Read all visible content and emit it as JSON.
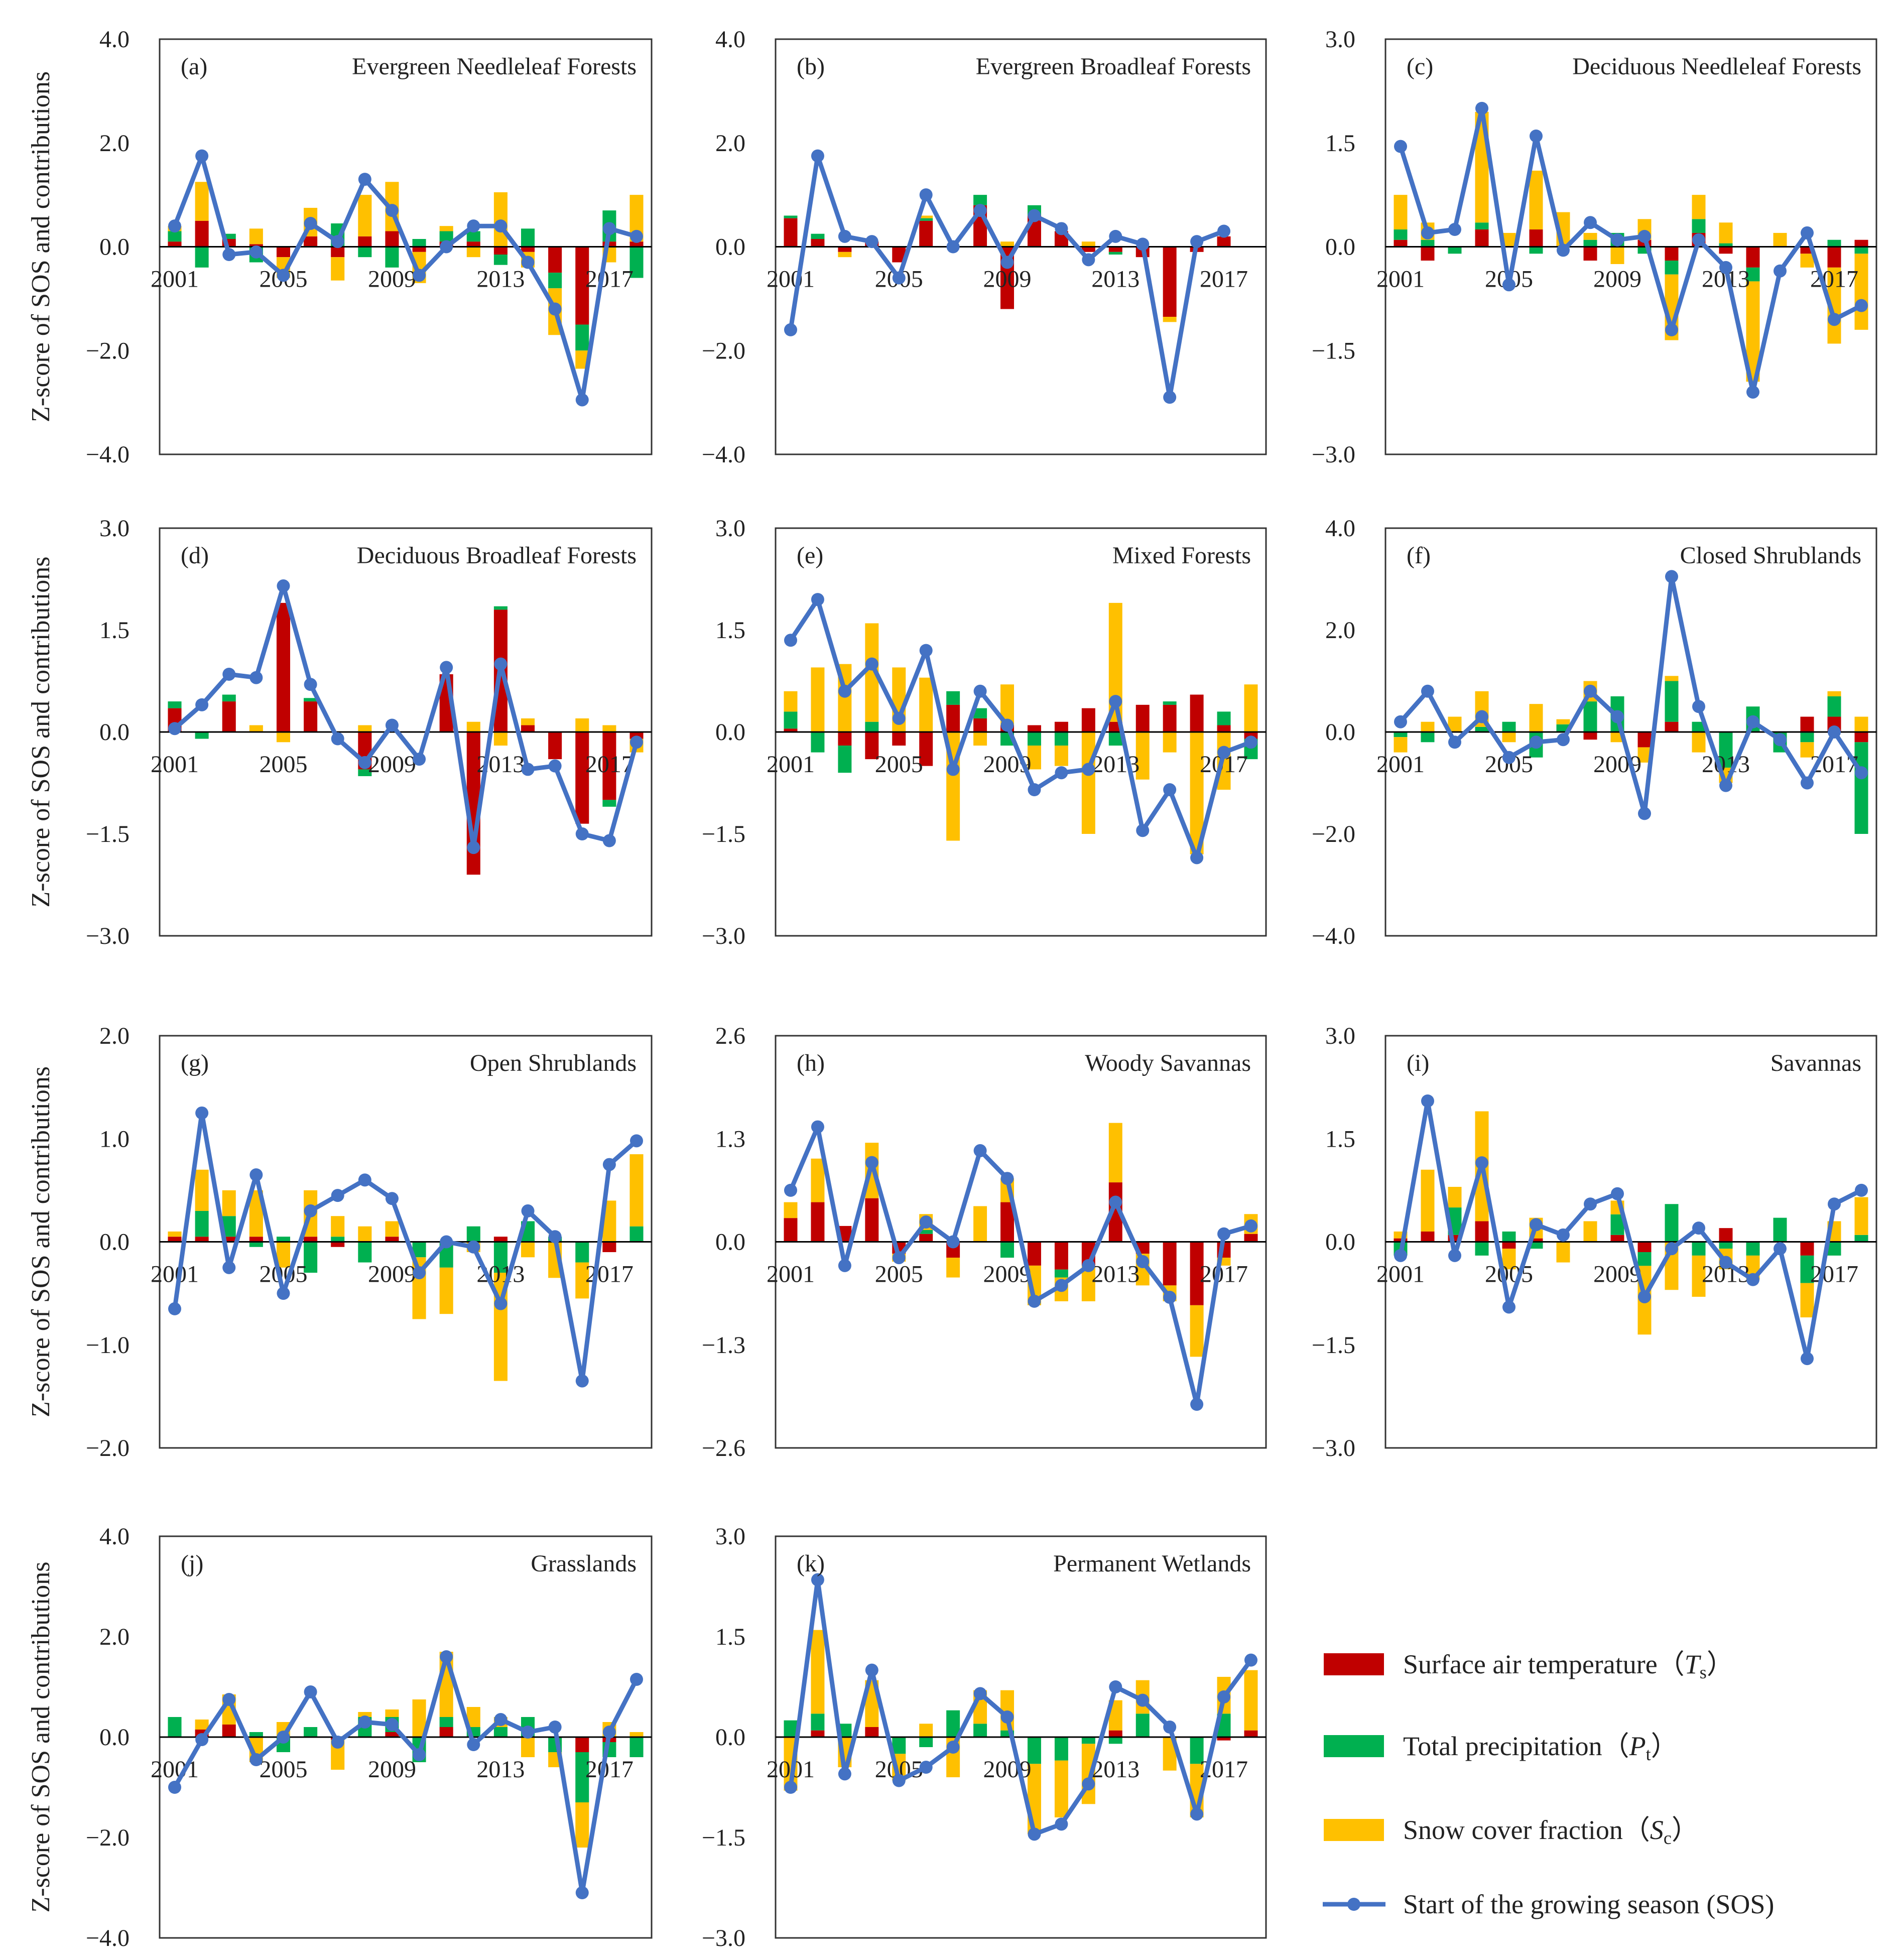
{
  "colors": {
    "Ts": "#c00000",
    "Pt": "#00b050",
    "Sc": "#ffc000",
    "SOS": "#4472c4"
  },
  "chart_data": {
    "type": "bar",
    "years": [
      2001,
      2002,
      2003,
      2004,
      2005,
      2006,
      2007,
      2008,
      2009,
      2010,
      2011,
      2012,
      2013,
      2014,
      2015,
      2016,
      2017,
      2018
    ],
    "year_tick_labels": [
      "2001",
      "2005",
      "2009",
      "2013",
      "2017"
    ],
    "ylabel": "Z-score of SOS and contributions",
    "legend": [
      {
        "key": "Ts",
        "label": "Surface air temperature（",
        "sym": "T",
        "sub": "s",
        "close": "）"
      },
      {
        "key": "Pt",
        "label": "Total precipitation（",
        "sym": "P",
        "sub": "t",
        "close": "）"
      },
      {
        "key": "Sc",
        "label": "Snow cover fraction（",
        "sym": "S",
        "sub": "c",
        "close": "）"
      },
      {
        "key": "SOS",
        "label": "Start of the growing season (SOS)",
        "sym": "",
        "sub": "",
        "close": ""
      }
    ],
    "panels": [
      {
        "label": "(a)",
        "title": "Evergreen Needleleaf Forests",
        "ylim": [
          -4,
          4
        ],
        "yticks": [
          "4.0",
          "2.0",
          "0.0",
          "−2.0",
          "−4.0"
        ],
        "sos": [
          0.4,
          1.75,
          -0.15,
          -0.1,
          -0.55,
          0.45,
          0.1,
          1.3,
          0.7,
          -0.55,
          0.0,
          0.4,
          0.4,
          -0.3,
          -1.2,
          -2.95,
          0.35,
          0.2
        ],
        "ts": [
          0.1,
          0.5,
          0.15,
          0.05,
          -0.2,
          0.2,
          -0.2,
          0.2,
          0.3,
          -0.1,
          0.1,
          0.1,
          -0.15,
          -0.1,
          -0.5,
          -1.5,
          0.1,
          0.1
        ],
        "pt": [
          0.2,
          -0.4,
          0.1,
          -0.3,
          0.0,
          0.0,
          0.45,
          -0.2,
          -0.4,
          0.15,
          0.2,
          0.2,
          -0.2,
          0.35,
          -0.3,
          -0.5,
          0.6,
          -0.6
        ],
        "sc": [
          0.1,
          0.75,
          0.0,
          0.3,
          -0.4,
          0.55,
          -0.45,
          0.8,
          0.95,
          -0.6,
          0.1,
          -0.2,
          1.05,
          -0.3,
          -0.9,
          -0.35,
          -0.3,
          0.9
        ]
      },
      {
        "label": "(b)",
        "title": "Evergreen Broadleaf Forests",
        "ylim": [
          -4,
          4
        ],
        "yticks": [
          "4.0",
          "2.0",
          "0.0",
          "−2.0",
          "−4.0"
        ],
        "sos": [
          -1.6,
          1.75,
          0.2,
          0.1,
          -0.6,
          1.0,
          0.0,
          0.7,
          -0.3,
          0.6,
          0.35,
          -0.25,
          0.2,
          0.05,
          -2.9,
          0.1,
          0.3,
          null
        ],
        "ts": [
          0.55,
          0.15,
          -0.1,
          0.1,
          -0.3,
          0.5,
          0.0,
          0.8,
          -1.2,
          0.6,
          0.3,
          -0.1,
          -0.1,
          -0.2,
          -1.35,
          -0.1,
          0.2,
          null
        ],
        "pt": [
          0.05,
          0.1,
          0.0,
          0.0,
          0.0,
          0.05,
          0.0,
          0.2,
          0.0,
          0.2,
          0.0,
          0.0,
          -0.05,
          0.0,
          0.0,
          0.0,
          0.0,
          null
        ],
        "sc": [
          0.0,
          0.0,
          -0.1,
          0.0,
          0.0,
          0.05,
          0.0,
          0.0,
          0.1,
          0.0,
          0.0,
          0.1,
          0.0,
          0.0,
          -0.1,
          0.0,
          0.0,
          null
        ]
      },
      {
        "label": "(c)",
        "title": "Deciduous Needleleaf Forests",
        "ylim": [
          -3,
          3
        ],
        "yticks": [
          "3.0",
          "1.5",
          "0.0",
          "−1.5",
          "−3.0"
        ],
        "sos": [
          1.45,
          0.2,
          0.25,
          2.0,
          -0.55,
          1.6,
          -0.05,
          0.35,
          0.1,
          0.15,
          -1.2,
          0.1,
          -0.3,
          -2.1,
          -0.35,
          0.2,
          -1.05,
          -0.85
        ],
        "ts": [
          0.1,
          -0.2,
          0.0,
          0.25,
          0.0,
          0.25,
          0.0,
          -0.2,
          0.0,
          0.1,
          -0.2,
          0.2,
          -0.1,
          -0.3,
          0.0,
          -0.1,
          -0.3,
          0.1
        ],
        "pt": [
          0.15,
          0.1,
          -0.1,
          0.1,
          0.0,
          -0.1,
          0.0,
          0.1,
          0.2,
          -0.1,
          -0.2,
          0.2,
          0.05,
          -0.2,
          0.0,
          0.0,
          0.1,
          -0.1
        ],
        "sc": [
          0.5,
          0.25,
          0.0,
          1.6,
          0.2,
          0.85,
          0.5,
          0.1,
          -0.25,
          0.3,
          -0.95,
          0.35,
          0.3,
          -1.45,
          0.2,
          -0.2,
          -1.1,
          -1.1
        ]
      },
      {
        "label": "(d)",
        "title": "Deciduous Broadleaf Forests",
        "ylim": [
          -3,
          3
        ],
        "yticks": [
          "3.0",
          "1.5",
          "0.0",
          "−1.5",
          "−3.0"
        ],
        "sos": [
          0.05,
          0.4,
          0.85,
          0.8,
          2.15,
          0.7,
          -0.1,
          -0.45,
          0.1,
          -0.4,
          0.95,
          -1.7,
          1.0,
          -0.55,
          -0.5,
          -1.5,
          -1.6,
          -0.15
        ],
        "ts": [
          0.35,
          0.0,
          0.45,
          0.0,
          1.9,
          0.45,
          0.0,
          -0.55,
          0.0,
          0.0,
          0.85,
          -2.1,
          1.8,
          0.1,
          -0.4,
          -1.35,
          -1.0,
          -0.1
        ],
        "pt": [
          0.1,
          -0.1,
          0.1,
          0.0,
          0.0,
          0.05,
          0.0,
          -0.1,
          0.0,
          0.0,
          0.0,
          0.0,
          0.05,
          0.0,
          0.0,
          0.0,
          -0.1,
          0.0
        ],
        "sc": [
          0.0,
          0.0,
          0.0,
          0.1,
          -0.15,
          0.0,
          0.0,
          0.1,
          0.0,
          0.0,
          0.0,
          0.15,
          -0.2,
          0.1,
          0.0,
          0.2,
          0.1,
          -0.2
        ]
      },
      {
        "label": "(e)",
        "title": "Mixed Forests",
        "ylim": [
          -3,
          3
        ],
        "yticks": [
          "3.0",
          "1.5",
          "0.0",
          "−1.5",
          "−3.0"
        ],
        "sos": [
          1.35,
          1.95,
          0.6,
          1.0,
          0.2,
          1.2,
          -0.55,
          0.6,
          0.1,
          -0.85,
          -0.6,
          -0.55,
          0.45,
          -1.45,
          -0.85,
          -1.85,
          -0.3,
          -0.15
        ],
        "ts": [
          0.05,
          0.0,
          -0.2,
          -0.4,
          -0.2,
          -0.5,
          0.4,
          0.2,
          0.1,
          0.1,
          0.15,
          0.35,
          0.15,
          0.4,
          0.4,
          0.55,
          0.1,
          -0.1
        ],
        "pt": [
          0.25,
          -0.3,
          -0.4,
          0.15,
          0.0,
          0.0,
          0.2,
          0.15,
          -0.2,
          -0.2,
          -0.2,
          0.0,
          -0.2,
          0.0,
          0.05,
          0.0,
          0.2,
          -0.3
        ],
        "sc": [
          0.3,
          0.95,
          1.0,
          1.45,
          0.95,
          0.8,
          -1.6,
          -0.2,
          0.6,
          -0.35,
          -0.3,
          -1.5,
          1.75,
          -0.7,
          -0.3,
          -1.8,
          -0.85,
          0.7
        ]
      },
      {
        "label": "(f)",
        "title": "Closed Shrublands",
        "ylim": [
          -4,
          4
        ],
        "yticks": [
          "4.0",
          "2.0",
          "0.0",
          "−2.0",
          "−4.0"
        ],
        "sos": [
          0.2,
          0.8,
          -0.2,
          0.3,
          -0.5,
          -0.2,
          -0.15,
          0.8,
          0.3,
          -1.6,
          3.05,
          0.5,
          -1.05,
          0.2,
          -0.15,
          -1.0,
          0.0,
          -0.8
        ],
        "ts": [
          0.0,
          0.0,
          0.0,
          0.0,
          0.0,
          0.0,
          0.0,
          -0.15,
          0.0,
          -0.3,
          0.2,
          0.0,
          0.0,
          0.0,
          0.0,
          0.3,
          0.3,
          -0.2
        ],
        "pt": [
          -0.1,
          -0.2,
          0.0,
          0.1,
          0.2,
          -0.5,
          0.15,
          0.6,
          0.7,
          0.0,
          0.8,
          0.2,
          -0.7,
          0.5,
          -0.4,
          -0.2,
          0.4,
          -1.8
        ],
        "sc": [
          -0.3,
          0.2,
          0.3,
          0.7,
          -0.2,
          0.55,
          0.1,
          0.4,
          -0.2,
          -0.3,
          0.1,
          -0.4,
          -0.3,
          0.0,
          0.0,
          -0.3,
          0.1,
          0.3
        ]
      },
      {
        "label": "(g)",
        "title": "Open Shrublands",
        "ylim": [
          -2,
          2
        ],
        "yticks": [
          "2.0",
          "1.0",
          "0.0",
          "−1.0",
          "−2.0"
        ],
        "sos": [
          -0.65,
          1.25,
          -0.25,
          0.65,
          -0.5,
          0.3,
          0.45,
          0.6,
          0.42,
          -0.3,
          0.0,
          -0.05,
          -0.6,
          0.3,
          0.05,
          -1.35,
          0.75,
          0.98
        ],
        "ts": [
          0.05,
          0.05,
          0.05,
          0.05,
          0.0,
          0.05,
          -0.05,
          0.0,
          0.05,
          0.0,
          0.0,
          0.0,
          0.05,
          0.0,
          0.0,
          0.0,
          -0.1,
          0.0
        ],
        "pt": [
          0.0,
          0.25,
          0.2,
          -0.05,
          0.05,
          -0.3,
          0.05,
          -0.2,
          0.0,
          -0.15,
          -0.25,
          0.15,
          -0.3,
          0.2,
          0.05,
          -0.2,
          0.0,
          0.15
        ],
        "sc": [
          0.05,
          0.4,
          0.25,
          0.45,
          -0.25,
          0.45,
          0.2,
          0.15,
          0.15,
          -0.6,
          -0.45,
          -0.1,
          -1.05,
          -0.15,
          -0.35,
          -0.35,
          0.4,
          0.7
        ]
      },
      {
        "label": "(h)",
        "title": "Woody Savannas",
        "ylim": [
          -2.6,
          2.6
        ],
        "yticks": [
          "2.6",
          "1.3",
          "0.0",
          "−1.3",
          "−2.6"
        ],
        "sos": [
          0.65,
          1.45,
          -0.3,
          1.0,
          -0.2,
          0.25,
          0.0,
          1.15,
          0.8,
          -0.75,
          -0.55,
          -0.3,
          0.5,
          -0.25,
          -0.7,
          -2.05,
          0.1,
          0.2
        ],
        "ts": [
          0.3,
          0.5,
          0.2,
          0.55,
          -0.15,
          0.1,
          -0.2,
          0.0,
          0.5,
          -0.3,
          -0.35,
          -0.3,
          0.75,
          -0.15,
          -0.55,
          -0.8,
          -0.2,
          0.1
        ],
        "pt": [
          0.0,
          0.0,
          0.0,
          0.0,
          0.0,
          0.05,
          0.0,
          0.0,
          -0.2,
          0.0,
          -0.1,
          0.0,
          0.0,
          0.0,
          0.0,
          0.0,
          0.0,
          0.0
        ],
        "sc": [
          0.2,
          0.55,
          0.0,
          0.7,
          -0.1,
          0.2,
          -0.25,
          0.45,
          0.3,
          -0.5,
          -0.3,
          -0.45,
          0.75,
          -0.4,
          -0.2,
          -0.65,
          -0.1,
          0.25
        ]
      },
      {
        "label": "(i)",
        "title": "Savannas",
        "ylim": [
          -3,
          3
        ],
        "yticks": [
          "3.0",
          "1.5",
          "0.0",
          "−1.5",
          "−3.0"
        ],
        "sos": [
          -0.2,
          2.05,
          -0.2,
          1.15,
          -0.95,
          0.25,
          0.1,
          0.55,
          0.7,
          -0.8,
          -0.1,
          0.2,
          -0.3,
          -0.55,
          -0.1,
          -1.7,
          0.55,
          0.75
        ],
        "ts": [
          0.05,
          0.15,
          0.1,
          0.3,
          -0.1,
          0.05,
          0.0,
          0.0,
          0.1,
          -0.15,
          0.0,
          0.0,
          0.2,
          0.0,
          0.0,
          -0.2,
          0.0,
          0.0
        ],
        "pt": [
          -0.2,
          0.0,
          0.4,
          -0.2,
          0.15,
          -0.1,
          0.0,
          0.0,
          0.3,
          -0.2,
          0.55,
          -0.2,
          -0.1,
          -0.2,
          0.35,
          -0.4,
          -0.2,
          0.1
        ],
        "sc": [
          0.1,
          0.9,
          0.3,
          1.6,
          -0.3,
          0.3,
          -0.3,
          0.3,
          0.2,
          -1.0,
          -0.7,
          -0.6,
          -0.3,
          -0.35,
          0.0,
          -0.5,
          0.3,
          0.55
        ]
      },
      {
        "label": "(j)",
        "title": "Grasslands",
        "ylim": [
          -4,
          4
        ],
        "yticks": [
          "4.0",
          "2.0",
          "0.0",
          "−2.0",
          "−4.0"
        ],
        "sos": [
          -1.0,
          -0.05,
          0.75,
          -0.45,
          0.0,
          0.9,
          -0.1,
          0.3,
          0.25,
          -0.35,
          1.6,
          -0.15,
          0.35,
          0.1,
          0.2,
          -3.1,
          0.1,
          1.15
        ],
        "ts": [
          0.0,
          0.15,
          0.25,
          0.0,
          0.0,
          0.0,
          -0.05,
          0.0,
          0.1,
          0.0,
          0.2,
          0.0,
          0.0,
          0.0,
          0.0,
          -0.3,
          -0.1,
          0.0
        ],
        "pt": [
          0.4,
          0.0,
          0.0,
          0.1,
          -0.3,
          0.2,
          0.0,
          0.4,
          0.3,
          -0.5,
          0.2,
          0.2,
          0.2,
          0.4,
          -0.3,
          -1.0,
          -0.3,
          -0.4
        ],
        "sc": [
          0.0,
          0.2,
          0.6,
          -0.5,
          0.3,
          0.0,
          -0.6,
          0.1,
          0.15,
          0.75,
          1.3,
          0.4,
          0.2,
          -0.4,
          -0.3,
          -0.9,
          0.3,
          0.1
        ]
      },
      {
        "label": "(k)",
        "title": "Permanent Wetlands",
        "ylim": [
          -3,
          3
        ],
        "yticks": [
          "3.0",
          "1.5",
          "0.0",
          "−1.5",
          "−3.0"
        ],
        "sos": [
          -0.75,
          2.35,
          -0.55,
          1.0,
          -0.65,
          -0.45,
          -0.15,
          0.65,
          0.3,
          -1.45,
          -1.3,
          -0.7,
          0.75,
          0.55,
          0.15,
          -1.15,
          0.6,
          1.15
        ],
        "ts": [
          0.0,
          0.1,
          0.0,
          0.15,
          0.0,
          0.0,
          0.0,
          0.0,
          0.0,
          0.0,
          0.0,
          0.0,
          0.1,
          0.0,
          0.0,
          0.0,
          -0.05,
          0.1
        ],
        "pt": [
          0.25,
          0.25,
          0.2,
          0.0,
          -0.25,
          -0.15,
          0.4,
          0.2,
          0.1,
          -0.4,
          -0.35,
          -0.1,
          -0.1,
          0.35,
          0.0,
          -0.4,
          0.35,
          0.0
        ],
        "sc": [
          -0.8,
          1.25,
          -0.45,
          0.7,
          -0.4,
          0.2,
          -0.6,
          0.5,
          0.6,
          -1.05,
          -0.85,
          -0.9,
          0.45,
          0.5,
          -0.5,
          -0.8,
          0.55,
          0.9
        ]
      }
    ]
  }
}
